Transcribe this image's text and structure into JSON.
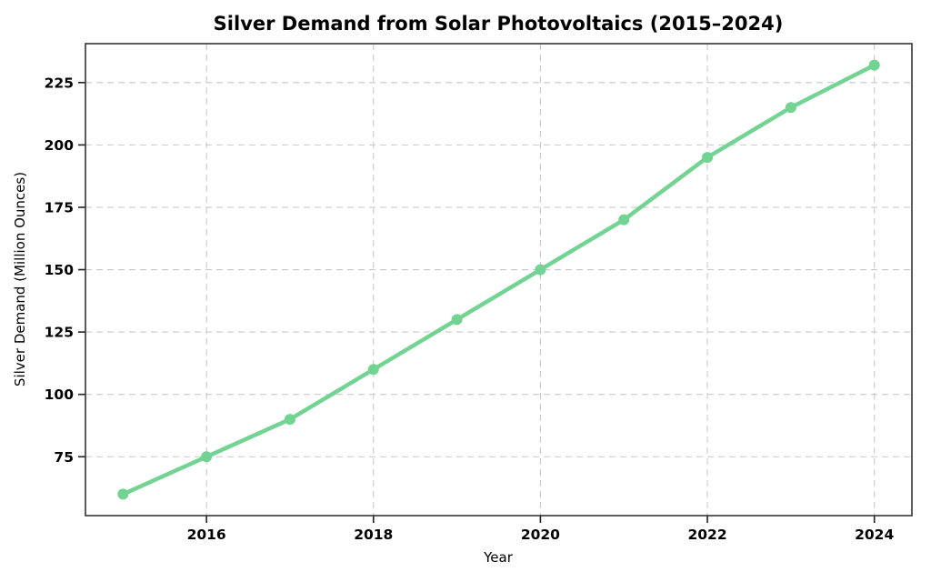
{
  "chart_data": {
    "type": "line",
    "title": "Silver Demand from Solar Photovoltaics (2015–2024)",
    "xlabel": "Year",
    "ylabel": "Silver Demand (Million Ounces)",
    "x": [
      2015,
      2016,
      2017,
      2018,
      2019,
      2020,
      2021,
      2022,
      2023,
      2024
    ],
    "series": [
      {
        "name": "Silver Demand",
        "values": [
          60,
          75,
          90,
          110,
          130,
          150,
          170,
          195,
          215,
          232
        ],
        "color": "#72d392",
        "marker": "circle",
        "line_width": 4.5,
        "marker_radius": 6
      }
    ],
    "xticks": {
      "values": [
        2016,
        2018,
        2020,
        2022,
        2024
      ],
      "labels": [
        "2016",
        "2018",
        "2020",
        "2022",
        "2024"
      ]
    },
    "yticks": {
      "values": [
        75,
        100,
        125,
        150,
        175,
        200,
        225
      ],
      "labels": [
        "75",
        "100",
        "125",
        "150",
        "175",
        "200",
        "225"
      ]
    },
    "xlim": [
      2014.55,
      2024.45
    ],
    "ylim": [
      51.4,
      240.6
    ],
    "grid": true,
    "grid_color": "#c9c9c9",
    "grid_style": "dashed",
    "legend": "none",
    "background": "#ffffff",
    "tick_color": "#222222"
  }
}
